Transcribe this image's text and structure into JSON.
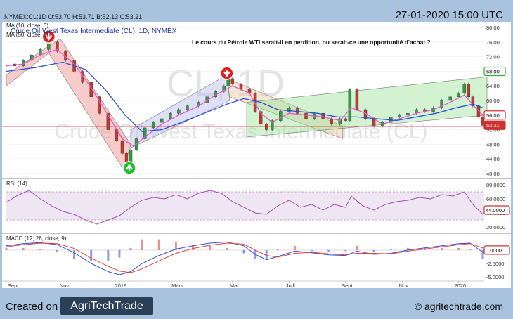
{
  "header": {
    "ohlc": "NYMEX:CL:1D O:53.70 H:53.71 B:52.13 C:53.21",
    "datetime": "27-01-2020 15:00 UTC"
  },
  "footer": {
    "created_on": "Created on",
    "logo_text": "AgriTechTrade",
    "site": "© agritechtrade.com"
  },
  "colors": {
    "price_up": "#2e9e3e",
    "price_down": "#c0392b",
    "ma10": "#e05bd2",
    "ma50": "#2b4fd6",
    "rsi": "#a24fb0",
    "macd": "#3050d8",
    "signal": "#e04040",
    "channel_down": "#f08c8c",
    "channel_up_wedge": "#9be39b",
    "channel_flat": "#e8c8a0",
    "channel_up_lav": "#b8b8e8"
  },
  "chart_data": [
    {
      "type": "line",
      "panel": "price",
      "title": "Crude Oil West Texas Intermediate (CL), 1D, NYMEX",
      "watermark_ticker": "CL, 1D",
      "watermark_name": "Crude Oil West Texas Intermediate (CL)",
      "annotation": "Le cours du Pétrole WTI serait-il en perdition, ou serait-ce une opportunité d'achat ?",
      "indicators": [
        "MA (10, close, 0)",
        "MA (50, close, 0)"
      ],
      "y_ticks": [
        40,
        44,
        48,
        52,
        56,
        60,
        64,
        68,
        72,
        76,
        80
      ],
      "y_tick_labels": [
        "40.00",
        "44.00",
        "48.00",
        "52.00",
        "56.00",
        "60.00",
        "64.00",
        "68.00",
        "72.00",
        "76.00",
        "80.00"
      ],
      "ylim": [
        39,
        81
      ],
      "x_labels": [
        "Sept",
        "Nov",
        "2019",
        "Mars",
        "Mai",
        "Juill",
        "Sept",
        "Nov",
        "2020"
      ],
      "x_label_months": [
        0,
        2,
        4,
        6,
        8,
        10,
        12,
        14,
        16
      ],
      "xlim_months": [
        0,
        16.9
      ],
      "key_levels": [
        {
          "value": 68.0,
          "label": "68.00",
          "color": "#3aa83a"
        },
        {
          "value": 56.0,
          "label": "56.00",
          "color": "#d03030"
        },
        {
          "value": 53.21,
          "label": "53.21",
          "color": "#d03030",
          "filled": true
        }
      ],
      "close_points": [
        [
          0.0,
          70.0
        ],
        [
          0.3,
          69.5
        ],
        [
          0.6,
          71.0
        ],
        [
          0.9,
          72.5
        ],
        [
          1.2,
          74.0
        ],
        [
          1.5,
          76.0
        ],
        [
          1.8,
          73.5
        ],
        [
          2.1,
          71.0
        ],
        [
          2.4,
          68.0
        ],
        [
          2.7,
          65.0
        ],
        [
          3.0,
          61.0
        ],
        [
          3.3,
          56.5
        ],
        [
          3.6,
          52.0
        ],
        [
          3.9,
          49.0
        ],
        [
          4.1,
          45.5
        ],
        [
          4.25,
          43.0
        ],
        [
          4.4,
          46.5
        ],
        [
          4.6,
          49.5
        ],
        [
          4.9,
          52.5
        ],
        [
          5.2,
          54.0
        ],
        [
          5.5,
          55.0
        ],
        [
          5.8,
          56.5
        ],
        [
          6.1,
          57.5
        ],
        [
          6.4,
          58.5
        ],
        [
          6.8,
          59.5
        ],
        [
          7.1,
          61.0
        ],
        [
          7.4,
          62.5
        ],
        [
          7.7,
          64.0
        ],
        [
          7.85,
          66.0
        ],
        [
          8.0,
          64.5
        ],
        [
          8.3,
          63.0
        ],
        [
          8.6,
          62.0
        ],
        [
          8.8,
          57.0
        ],
        [
          9.0,
          53.5
        ],
        [
          9.2,
          52.0
        ],
        [
          9.4,
          54.5
        ],
        [
          9.7,
          57.0
        ],
        [
          10.0,
          58.0
        ],
        [
          10.3,
          56.5
        ],
        [
          10.6,
          55.0
        ],
        [
          10.9,
          56.5
        ],
        [
          11.2,
          55.0
        ],
        [
          11.5,
          53.5
        ],
        [
          11.8,
          55.0
        ],
        [
          12.0,
          54.5
        ],
        [
          12.15,
          63.0
        ],
        [
          12.4,
          57.5
        ],
        [
          12.7,
          55.0
        ],
        [
          13.0,
          53.0
        ],
        [
          13.3,
          54.0
        ],
        [
          13.6,
          55.5
        ],
        [
          13.9,
          56.0
        ],
        [
          14.2,
          56.5
        ],
        [
          14.5,
          57.5
        ],
        [
          14.8,
          57.0
        ],
        [
          15.1,
          58.0
        ],
        [
          15.4,
          60.0
        ],
        [
          15.7,
          61.0
        ],
        [
          16.0,
          62.0
        ],
        [
          16.2,
          64.5
        ],
        [
          16.35,
          61.0
        ],
        [
          16.5,
          58.5
        ],
        [
          16.7,
          55.5
        ],
        [
          16.85,
          53.21
        ]
      ],
      "ma10_points": [
        [
          0.0,
          69.5
        ],
        [
          0.6,
          70.0
        ],
        [
          1.2,
          72.5
        ],
        [
          1.8,
          74.0
        ],
        [
          2.4,
          70.0
        ],
        [
          3.0,
          63.5
        ],
        [
          3.6,
          56.0
        ],
        [
          4.1,
          49.5
        ],
        [
          4.5,
          47.5
        ],
        [
          4.9,
          50.0
        ],
        [
          5.5,
          53.5
        ],
        [
          6.1,
          56.0
        ],
        [
          6.8,
          58.5
        ],
        [
          7.4,
          61.5
        ],
        [
          8.0,
          64.0
        ],
        [
          8.6,
          62.0
        ],
        [
          9.0,
          56.5
        ],
        [
          9.4,
          54.0
        ],
        [
          10.0,
          56.5
        ],
        [
          10.6,
          56.0
        ],
        [
          11.2,
          55.5
        ],
        [
          11.8,
          54.5
        ],
        [
          12.2,
          58.0
        ],
        [
          12.7,
          56.5
        ],
        [
          13.3,
          53.5
        ],
        [
          13.9,
          55.0
        ],
        [
          14.5,
          56.5
        ],
        [
          15.1,
          57.5
        ],
        [
          15.7,
          59.5
        ],
        [
          16.2,
          61.5
        ],
        [
          16.6,
          58.0
        ],
        [
          16.85,
          56.0
        ]
      ],
      "ma50_points": [
        [
          0.0,
          68.0
        ],
        [
          1.0,
          69.0
        ],
        [
          2.0,
          70.5
        ],
        [
          2.8,
          68.5
        ],
        [
          3.5,
          63.0
        ],
        [
          4.2,
          56.0
        ],
        [
          4.8,
          51.5
        ],
        [
          5.5,
          52.0
        ],
        [
          6.2,
          54.0
        ],
        [
          7.0,
          56.5
        ],
        [
          7.8,
          59.0
        ],
        [
          8.4,
          60.5
        ],
        [
          9.0,
          59.5
        ],
        [
          9.6,
          57.5
        ],
        [
          10.3,
          57.0
        ],
        [
          11.0,
          56.5
        ],
        [
          11.7,
          55.5
        ],
        [
          12.4,
          55.5
        ],
        [
          13.1,
          55.0
        ],
        [
          13.8,
          54.5
        ],
        [
          14.5,
          55.5
        ],
        [
          15.2,
          56.5
        ],
        [
          15.9,
          58.0
        ],
        [
          16.5,
          59.0
        ],
        [
          16.85,
          58.0
        ]
      ],
      "signals": [
        {
          "type": "sell",
          "x": 1.5,
          "y": 77.5
        },
        {
          "type": "buy",
          "x": 4.35,
          "y": 41.5
        },
        {
          "type": "sell",
          "x": 7.8,
          "y": 67.5
        }
      ],
      "channels": [
        {
          "kind": "down",
          "upper": [
            [
              0.0,
              67.0
            ],
            [
              1.9,
              77.0
            ],
            [
              4.4,
              48.0
            ]
          ],
          "lower": [
            [
              0.0,
              64.0
            ],
            [
              1.5,
              73.0
            ],
            [
              4.15,
              41.0
            ]
          ]
        },
        {
          "kind": "up",
          "upper": [
            [
              4.4,
              52.0
            ],
            [
              7.8,
              67.0
            ]
          ],
          "lower": [
            [
              4.4,
              47.0
            ],
            [
              7.9,
              60.0
            ]
          ]
        },
        {
          "kind": "flat",
          "upper": [
            [
              7.8,
              66.0
            ],
            [
              11.9,
              53.0
            ]
          ],
          "lower": [
            [
              7.9,
              61.0
            ],
            [
              11.9,
              49.5
            ]
          ]
        },
        {
          "kind": "wedge",
          "upper": [
            [
              8.5,
              59.5
            ],
            [
              17.0,
              66.5
            ]
          ],
          "lower": [
            [
              8.5,
              50.0
            ],
            [
              17.0,
              56.0
            ]
          ]
        }
      ]
    },
    {
      "type": "line",
      "panel": "rsi",
      "title": "RSI (14)",
      "y_ticks": [
        20,
        40,
        60,
        80
      ],
      "y_tick_labels": [
        "20.0000",
        "40.0000",
        "60.0000",
        "80.0000"
      ],
      "ylim": [
        15,
        85
      ],
      "band": [
        30,
        70
      ],
      "key_levels": [
        {
          "value": 44.0,
          "label": "44.0000",
          "color": "#d03030"
        }
      ],
      "points": [
        [
          0.0,
          55
        ],
        [
          0.4,
          65
        ],
        [
          0.8,
          72
        ],
        [
          1.2,
          60
        ],
        [
          1.6,
          50
        ],
        [
          2.0,
          42
        ],
        [
          2.4,
          38
        ],
        [
          2.8,
          30
        ],
        [
          3.2,
          24
        ],
        [
          3.6,
          30
        ],
        [
          4.0,
          36
        ],
        [
          4.4,
          48
        ],
        [
          4.8,
          58
        ],
        [
          5.2,
          62
        ],
        [
          5.6,
          60
        ],
        [
          6.0,
          66
        ],
        [
          6.4,
          60
        ],
        [
          6.8,
          68
        ],
        [
          7.2,
          72
        ],
        [
          7.6,
          68
        ],
        [
          8.0,
          56
        ],
        [
          8.4,
          48
        ],
        [
          8.8,
          40
        ],
        [
          9.2,
          38
        ],
        [
          9.6,
          50
        ],
        [
          10.0,
          58
        ],
        [
          10.4,
          48
        ],
        [
          10.8,
          52
        ],
        [
          11.2,
          44
        ],
        [
          11.6,
          52
        ],
        [
          12.0,
          48
        ],
        [
          12.2,
          64
        ],
        [
          12.6,
          50
        ],
        [
          13.0,
          44
        ],
        [
          13.4,
          52
        ],
        [
          13.8,
          56
        ],
        [
          14.2,
          58
        ],
        [
          14.6,
          62
        ],
        [
          15.0,
          60
        ],
        [
          15.4,
          66
        ],
        [
          15.8,
          64
        ],
        [
          16.2,
          70
        ],
        [
          16.5,
          52
        ],
        [
          16.85,
          38
        ]
      ]
    },
    {
      "type": "line",
      "panel": "macd",
      "title": "MACD (12, 26, close, 9)",
      "y_ticks": [
        -5,
        -2.5,
        0
      ],
      "y_tick_labels": [
        "-5.0000",
        "-2.5000",
        "0.0000"
      ],
      "ylim": [
        -5.5,
        2.6
      ],
      "key_levels": [
        {
          "value": 0.0,
          "label": "0.0000",
          "color": "#d03030"
        }
      ],
      "macd_points": [
        [
          0.0,
          0.8
        ],
        [
          0.6,
          1.2
        ],
        [
          1.2,
          1.4
        ],
        [
          1.8,
          1.0
        ],
        [
          2.4,
          -0.5
        ],
        [
          3.0,
          -2.5
        ],
        [
          3.6,
          -4.0
        ],
        [
          4.0,
          -4.6
        ],
        [
          4.4,
          -4.0
        ],
        [
          4.8,
          -2.5
        ],
        [
          5.4,
          -1.0
        ],
        [
          6.0,
          0.2
        ],
        [
          6.6,
          0.8
        ],
        [
          7.2,
          1.3
        ],
        [
          7.8,
          1.5
        ],
        [
          8.4,
          0.8
        ],
        [
          8.8,
          -0.8
        ],
        [
          9.2,
          -1.8
        ],
        [
          9.6,
          -1.2
        ],
        [
          10.2,
          -0.2
        ],
        [
          10.8,
          -0.5
        ],
        [
          11.4,
          -0.9
        ],
        [
          12.0,
          -1.0
        ],
        [
          12.4,
          -0.2
        ],
        [
          13.0,
          -0.8
        ],
        [
          13.6,
          -0.6
        ],
        [
          14.2,
          0.0
        ],
        [
          14.8,
          0.4
        ],
        [
          15.4,
          0.8
        ],
        [
          16.0,
          1.2
        ],
        [
          16.4,
          1.3
        ],
        [
          16.85,
          -0.4
        ]
      ],
      "signal_points": [
        [
          0.0,
          0.6
        ],
        [
          0.6,
          1.0
        ],
        [
          1.2,
          1.3
        ],
        [
          1.8,
          1.2
        ],
        [
          2.4,
          0.3
        ],
        [
          3.0,
          -1.5
        ],
        [
          3.6,
          -3.0
        ],
        [
          4.0,
          -3.9
        ],
        [
          4.4,
          -4.2
        ],
        [
          4.8,
          -3.5
        ],
        [
          5.4,
          -2.0
        ],
        [
          6.0,
          -0.6
        ],
        [
          6.6,
          0.3
        ],
        [
          7.2,
          0.9
        ],
        [
          7.8,
          1.3
        ],
        [
          8.4,
          1.1
        ],
        [
          8.8,
          0.0
        ],
        [
          9.2,
          -1.0
        ],
        [
          9.6,
          -1.3
        ],
        [
          10.2,
          -0.6
        ],
        [
          10.8,
          -0.4
        ],
        [
          11.4,
          -0.7
        ],
        [
          12.0,
          -0.9
        ],
        [
          12.4,
          -0.6
        ],
        [
          13.0,
          -0.6
        ],
        [
          13.6,
          -0.7
        ],
        [
          14.2,
          -0.2
        ],
        [
          14.8,
          0.2
        ],
        [
          15.4,
          0.6
        ],
        [
          16.0,
          1.0
        ],
        [
          16.4,
          1.2
        ],
        [
          16.85,
          0.4
        ]
      ]
    }
  ]
}
